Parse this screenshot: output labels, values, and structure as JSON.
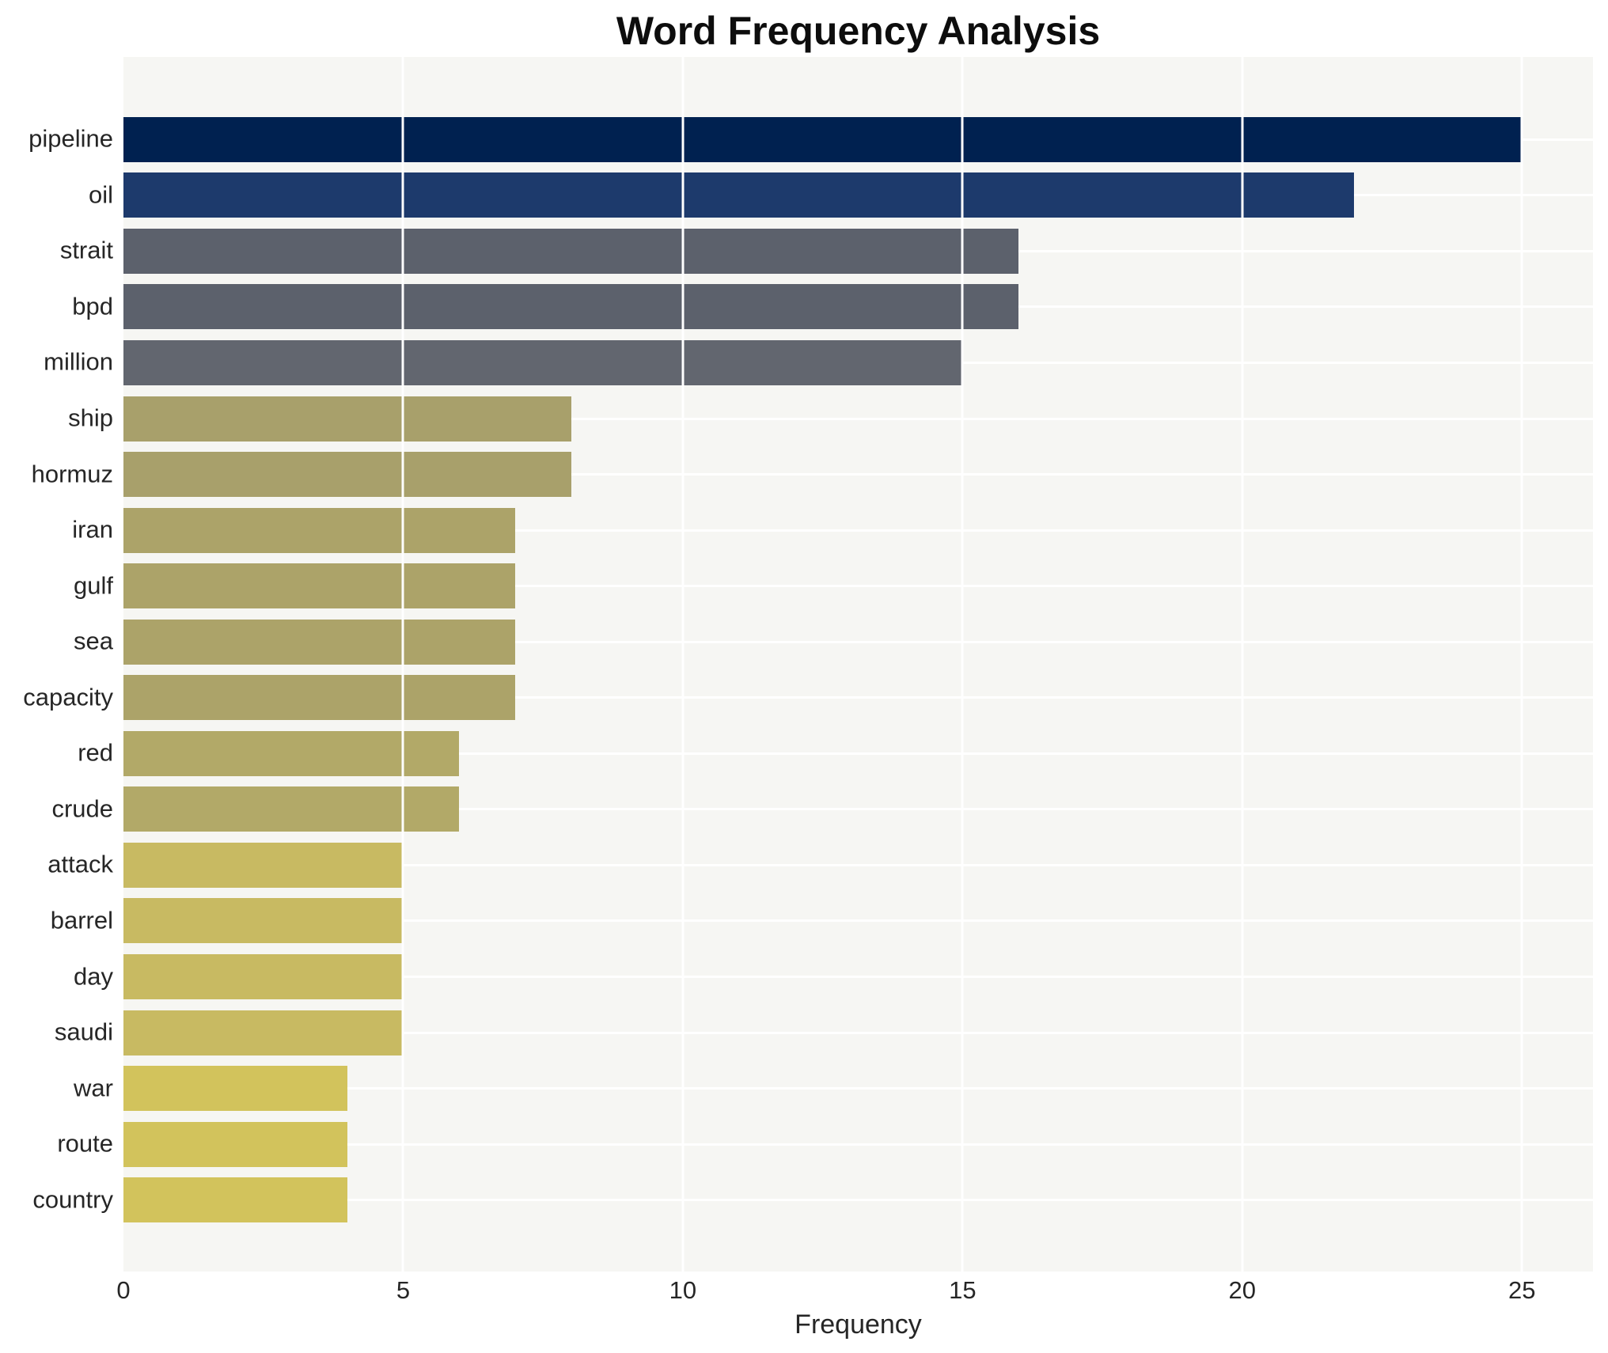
{
  "chart_data": {
    "type": "bar",
    "orientation": "horizontal",
    "title": "Word Frequency Analysis",
    "xlabel": "Frequency",
    "ylabel": "",
    "categories": [
      "pipeline",
      "oil",
      "strait",
      "bpd",
      "million",
      "ship",
      "hormuz",
      "iran",
      "gulf",
      "sea",
      "capacity",
      "red",
      "crude",
      "attack",
      "barrel",
      "day",
      "saudi",
      "war",
      "route",
      "country"
    ],
    "values": [
      25,
      22,
      16,
      16,
      15,
      8,
      8,
      7,
      7,
      7,
      7,
      6,
      6,
      5,
      5,
      5,
      5,
      4,
      4,
      4
    ],
    "bar_colors": [
      "#002150",
      "#1d3a6c",
      "#5c616c",
      "#5c616c",
      "#62666f",
      "#a8a06b",
      "#a8a06b",
      "#aca369",
      "#aca369",
      "#aca369",
      "#aca369",
      "#b2a968",
      "#b2a968",
      "#c8ba62",
      "#c8ba62",
      "#c8ba62",
      "#c8ba62",
      "#d2c35c",
      "#d2c35c",
      "#d2c35c"
    ],
    "xlim": [
      0,
      26.27
    ],
    "xticks": [
      0,
      5,
      10,
      15,
      20,
      25
    ],
    "grid": true,
    "legend": false,
    "colors": {
      "figure_background": "#ffffff",
      "plot_background": "#f6f6f3",
      "gridline": "#ffffff",
      "title_text": "#0d0d0d",
      "tick_text": "#262626"
    }
  }
}
